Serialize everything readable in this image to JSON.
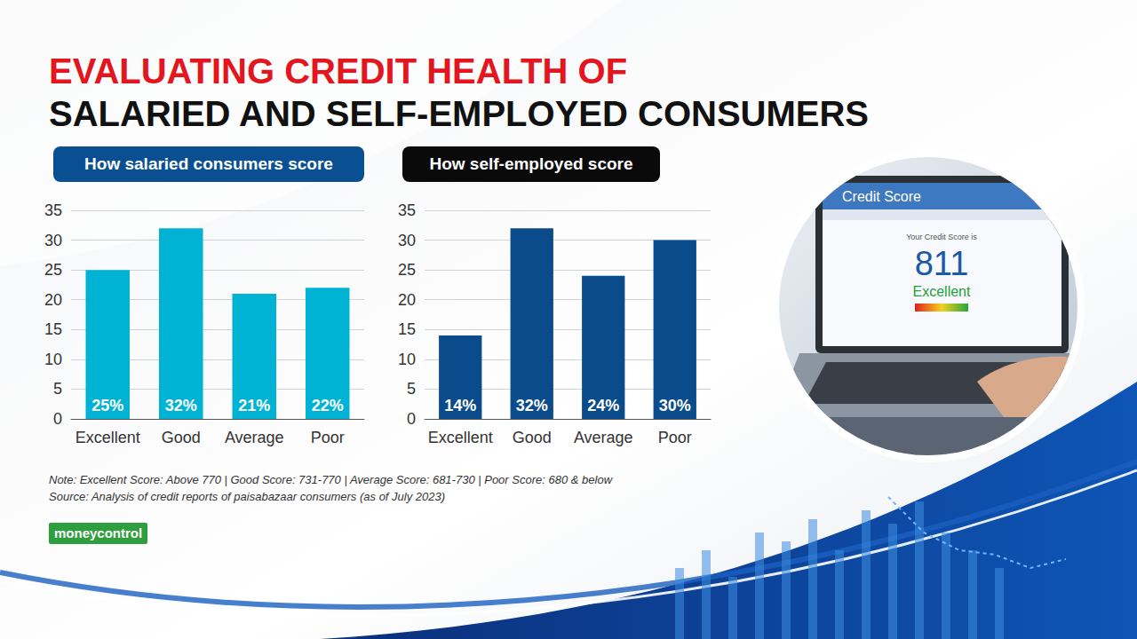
{
  "header": {
    "title_line1": "EVALUATING CREDIT HEALTH OF",
    "title_line2": "SALARIED AND SELF-EMPLOYED CONSUMERS"
  },
  "chart_data": [
    {
      "type": "bar",
      "title": "How salaried consumers score",
      "categories": [
        "Excellent",
        "Good",
        "Average",
        "Poor"
      ],
      "values": [
        25,
        32,
        21,
        22
      ],
      "value_labels": [
        "25%",
        "32%",
        "21%",
        "22%"
      ],
      "color": "#00b3d5",
      "ylim": [
        0,
        35
      ],
      "yticks": [
        0,
        5,
        10,
        15,
        20,
        25,
        30,
        35
      ],
      "grid": true,
      "data_labels": true
    },
    {
      "type": "bar",
      "title": "How self-employed score",
      "categories": [
        "Excellent",
        "Good",
        "Average",
        "Poor"
      ],
      "values": [
        14,
        32,
        24,
        30
      ],
      "value_labels": [
        "14%",
        "32%",
        "24%",
        "30%"
      ],
      "color": "#0a4b8c",
      "ylim": [
        0,
        35
      ],
      "yticks": [
        0,
        5,
        10,
        15,
        20,
        25,
        30,
        35
      ],
      "grid": true,
      "data_labels": true
    }
  ],
  "note": "Note: Excellent Score: Above 770 | Good Score: 731-770 | Average Score: 681-730 | Poor Score: 680 & below",
  "source": "Source: Analysis of credit reports of paisabazaar consumers (as of July 2023)",
  "brand": "moneycontrol",
  "illustration": {
    "screen_title": "Credit Score",
    "caption": "Your Credit Score is",
    "score": 811,
    "rating": "Excellent"
  }
}
